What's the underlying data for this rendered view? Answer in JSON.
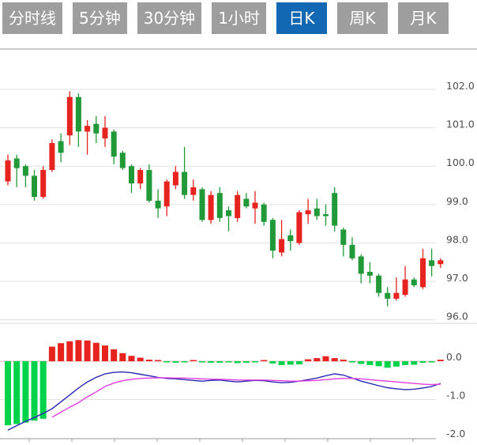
{
  "toolbar": {
    "tabs": [
      {
        "id": "timeline",
        "label": "分时线",
        "active": false
      },
      {
        "id": "5min",
        "label": "5分钟",
        "active": false
      },
      {
        "id": "30min",
        "label": "30分钟",
        "active": false
      },
      {
        "id": "1hour",
        "label": "1小时",
        "active": false
      },
      {
        "id": "daily-k",
        "label": "日K",
        "active": true
      },
      {
        "id": "weekly-k",
        "label": "周K",
        "active": false
      },
      {
        "id": "monthly-k",
        "label": "月K",
        "active": false
      }
    ],
    "active_bg": "#1268b3",
    "inactive_bg": "#9e9e9e",
    "text_color": "#ffffff"
  },
  "chart_data": {
    "type": "candlestick+macd",
    "title": "",
    "legend_position": "none",
    "grid": true,
    "colors": {
      "up": "#e6231e",
      "down": "#229939",
      "hist_up": "#e6231e",
      "hist_down": "#00d24a",
      "dif_line": "#2828b4",
      "dea_line": "#e23ce0",
      "gridline": "#e3e3e3",
      "zero_line": "#e9b8b8",
      "panel_border": "#adadad",
      "divider": "#d9d9d9",
      "axis": "#9a9a9a",
      "label": "#4d4d4d"
    },
    "price_axis": {
      "labels": [
        "102.0",
        "101.0",
        "100.0",
        "99.0",
        "98.0",
        "97.0",
        "96.0"
      ],
      "ticks": [
        102.0,
        101.0,
        100.0,
        99.0,
        98.0,
        97.0,
        96.0
      ],
      "range": [
        95.9,
        103.0
      ]
    },
    "macd_axis": {
      "labels": [
        "0.0",
        "-1.0",
        "-2.0"
      ],
      "ticks": [
        0.0,
        -1.0,
        -2.0
      ],
      "range": [
        -2.1,
        0.6
      ]
    },
    "candles": [
      {
        "o": 99.6,
        "h": 100.3,
        "l": 99.5,
        "c": 100.15
      },
      {
        "o": 100.2,
        "h": 100.3,
        "l": 99.45,
        "c": 99.95
      },
      {
        "o": 100.0,
        "h": 100.05,
        "l": 99.45,
        "c": 99.75
      },
      {
        "o": 99.75,
        "h": 99.9,
        "l": 99.1,
        "c": 99.2
      },
      {
        "o": 99.2,
        "h": 100.0,
        "l": 99.15,
        "c": 99.9
      },
      {
        "o": 99.9,
        "h": 100.7,
        "l": 99.85,
        "c": 100.6
      },
      {
        "o": 100.65,
        "h": 100.85,
        "l": 100.1,
        "c": 100.35
      },
      {
        "o": 100.8,
        "h": 101.95,
        "l": 100.55,
        "c": 101.8
      },
      {
        "o": 101.8,
        "h": 101.9,
        "l": 100.5,
        "c": 100.9
      },
      {
        "o": 100.9,
        "h": 101.2,
        "l": 100.3,
        "c": 101.05
      },
      {
        "o": 101.1,
        "h": 101.3,
        "l": 100.6,
        "c": 100.85
      },
      {
        "o": 100.72,
        "h": 101.3,
        "l": 100.5,
        "c": 101.0
      },
      {
        "o": 100.9,
        "h": 100.95,
        "l": 100.05,
        "c": 100.25
      },
      {
        "o": 100.35,
        "h": 100.4,
        "l": 99.9,
        "c": 99.95
      },
      {
        "o": 100.0,
        "h": 100.05,
        "l": 99.3,
        "c": 99.55
      },
      {
        "o": 99.55,
        "h": 99.95,
        "l": 99.4,
        "c": 99.9
      },
      {
        "o": 99.9,
        "h": 100.05,
        "l": 99.05,
        "c": 99.1
      },
      {
        "o": 99.1,
        "h": 99.4,
        "l": 98.65,
        "c": 98.9
      },
      {
        "o": 98.95,
        "h": 99.65,
        "l": 98.7,
        "c": 99.6
      },
      {
        "o": 99.5,
        "h": 100.0,
        "l": 99.4,
        "c": 99.85
      },
      {
        "o": 99.85,
        "h": 100.5,
        "l": 99.15,
        "c": 99.25
      },
      {
        "o": 99.25,
        "h": 99.65,
        "l": 99.1,
        "c": 99.45
      },
      {
        "o": 99.4,
        "h": 99.45,
        "l": 98.55,
        "c": 98.6
      },
      {
        "o": 98.6,
        "h": 99.35,
        "l": 98.5,
        "c": 99.25
      },
      {
        "o": 99.3,
        "h": 99.45,
        "l": 98.55,
        "c": 98.65
      },
      {
        "o": 98.85,
        "h": 98.95,
        "l": 98.3,
        "c": 98.7
      },
      {
        "o": 98.65,
        "h": 99.35,
        "l": 98.55,
        "c": 99.25
      },
      {
        "o": 99.15,
        "h": 99.3,
        "l": 98.9,
        "c": 98.95
      },
      {
        "o": 98.9,
        "h": 99.35,
        "l": 98.5,
        "c": 99.05
      },
      {
        "o": 99.0,
        "h": 99.05,
        "l": 98.45,
        "c": 98.55
      },
      {
        "o": 98.6,
        "h": 98.65,
        "l": 97.6,
        "c": 97.8
      },
      {
        "o": 97.75,
        "h": 98.6,
        "l": 97.65,
        "c": 98.1
      },
      {
        "o": 98.2,
        "h": 98.35,
        "l": 97.8,
        "c": 98.05
      },
      {
        "o": 98.0,
        "h": 98.85,
        "l": 97.95,
        "c": 98.8
      },
      {
        "o": 98.75,
        "h": 99.15,
        "l": 98.5,
        "c": 98.85
      },
      {
        "o": 98.9,
        "h": 99.15,
        "l": 98.6,
        "c": 98.7
      },
      {
        "o": 98.75,
        "h": 99.0,
        "l": 98.45,
        "c": 98.7
      },
      {
        "o": 99.3,
        "h": 99.45,
        "l": 98.3,
        "c": 98.45
      },
      {
        "o": 98.35,
        "h": 98.4,
        "l": 97.65,
        "c": 97.95
      },
      {
        "o": 97.95,
        "h": 98.15,
        "l": 97.55,
        "c": 97.6
      },
      {
        "o": 97.65,
        "h": 97.7,
        "l": 96.95,
        "c": 97.2
      },
      {
        "o": 97.25,
        "h": 97.5,
        "l": 96.95,
        "c": 97.15
      },
      {
        "o": 97.15,
        "h": 97.2,
        "l": 96.6,
        "c": 96.7
      },
      {
        "o": 96.7,
        "h": 96.85,
        "l": 96.35,
        "c": 96.55
      },
      {
        "o": 96.55,
        "h": 97.1,
        "l": 96.5,
        "c": 96.7
      },
      {
        "o": 96.65,
        "h": 97.4,
        "l": 96.6,
        "c": 97.05
      },
      {
        "o": 97.05,
        "h": 97.1,
        "l": 96.85,
        "c": 96.9
      },
      {
        "o": 96.85,
        "h": 97.85,
        "l": 96.8,
        "c": 97.6
      },
      {
        "o": 97.55,
        "h": 97.85,
        "l": 97.13,
        "c": 97.4
      },
      {
        "o": 97.45,
        "h": 97.6,
        "l": 97.35,
        "c": 97.55
      }
    ],
    "macd": {
      "hist": [
        -1.67,
        -1.64,
        -1.6,
        -1.55,
        -1.5,
        0.38,
        0.47,
        0.52,
        0.55,
        0.54,
        0.48,
        0.41,
        0.31,
        0.21,
        0.14,
        0.09,
        0.04,
        0.02,
        -0.03,
        -0.04,
        -0.03,
        0.02,
        -0.03,
        -0.04,
        -0.04,
        -0.03,
        -0.05,
        -0.04,
        -0.02,
        0.03,
        -0.06,
        -0.1,
        -0.09,
        -0.08,
        0.05,
        0.08,
        0.13,
        0.08,
        0.04,
        -0.03,
        -0.07,
        -0.1,
        -0.13,
        -0.17,
        -0.14,
        -0.1,
        -0.09,
        -0.04,
        -0.02,
        0.04
      ],
      "dif": [
        -1.8,
        -1.68,
        -1.57,
        -1.47,
        -1.36,
        -1.24,
        -1.06,
        -0.88,
        -0.7,
        -0.54,
        -0.42,
        -0.33,
        -0.29,
        -0.28,
        -0.3,
        -0.34,
        -0.38,
        -0.42,
        -0.45,
        -0.46,
        -0.48,
        -0.5,
        -0.52,
        -0.5,
        -0.49,
        -0.52,
        -0.54,
        -0.52,
        -0.5,
        -0.51,
        -0.54,
        -0.56,
        -0.55,
        -0.52,
        -0.48,
        -0.44,
        -0.38,
        -0.33,
        -0.36,
        -0.44,
        -0.52,
        -0.58,
        -0.64,
        -0.69,
        -0.72,
        -0.74,
        -0.73,
        -0.7,
        -0.66,
        -0.58
      ],
      "dea": [
        null,
        null,
        null,
        null,
        null,
        -1.46,
        -1.33,
        -1.2,
        -1.08,
        -0.93,
        -0.8,
        -0.66,
        -0.57,
        -0.51,
        -0.47,
        -0.45,
        -0.44,
        -0.43,
        -0.43,
        -0.44,
        -0.44,
        -0.45,
        -0.46,
        -0.47,
        -0.47,
        -0.48,
        -0.49,
        -0.49,
        -0.49,
        -0.49,
        -0.5,
        -0.51,
        -0.52,
        -0.52,
        -0.51,
        -0.5,
        -0.48,
        -0.46,
        -0.45,
        -0.45,
        -0.46,
        -0.48,
        -0.5,
        -0.52,
        -0.54,
        -0.56,
        -0.58,
        -0.6,
        -0.61,
        -0.6
      ]
    }
  }
}
